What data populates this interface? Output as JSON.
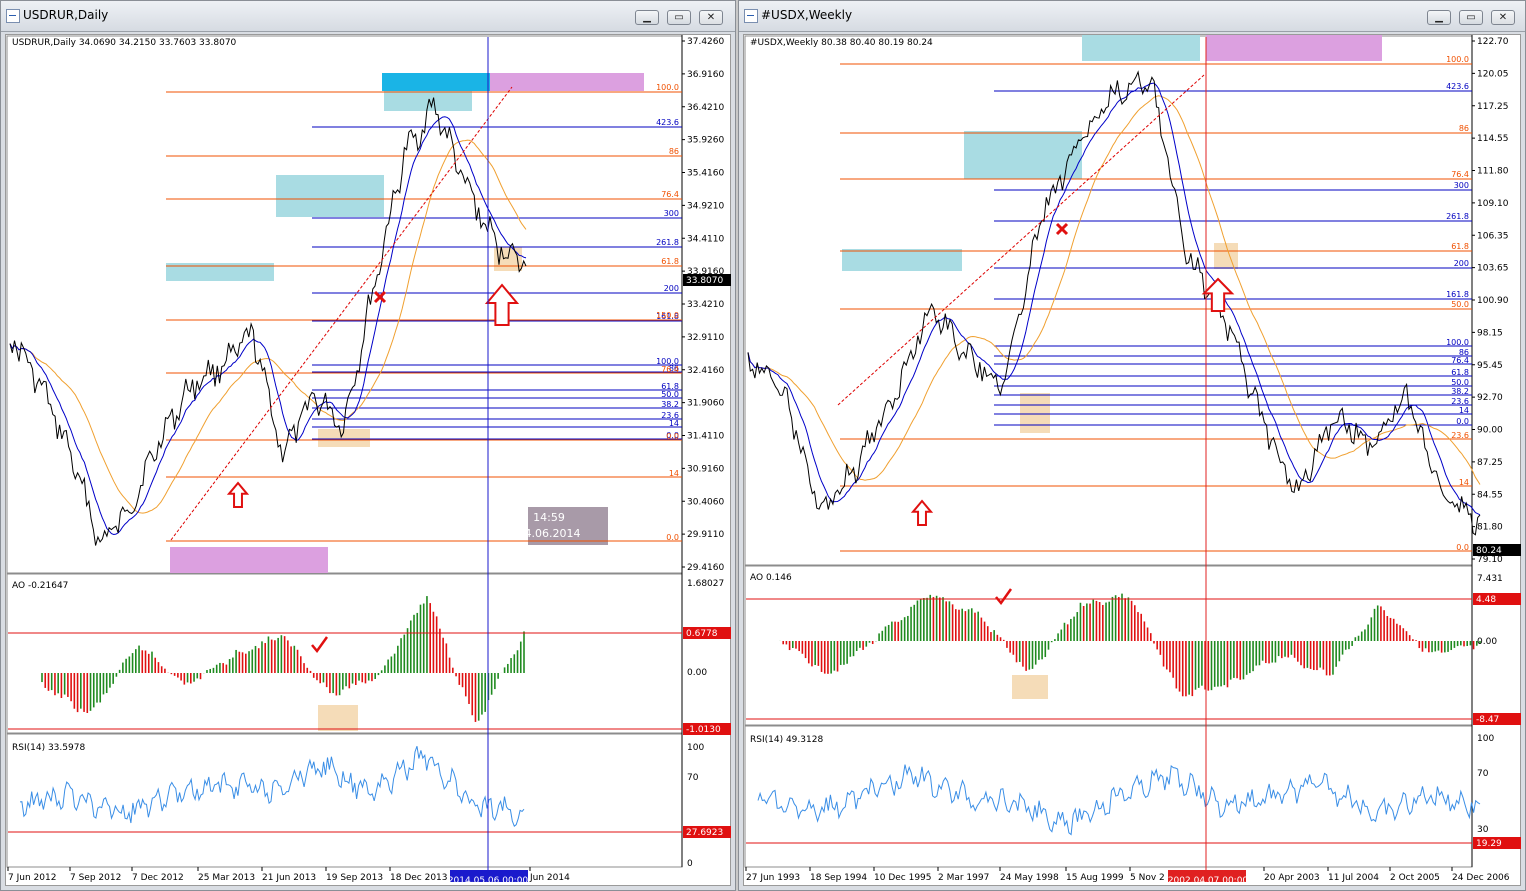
{
  "left_window": {
    "title": "USDRUR,Daily",
    "buttons": {
      "minimize": "▁",
      "maximize": "▭",
      "close": "✕"
    },
    "header": "USDRUR,Daily  34.0690 34.2150 33.7603 33.8070",
    "price_axis": [
      "37.4260",
      "36.9160",
      "36.4210",
      "35.9260",
      "35.4160",
      "34.9210",
      "34.4110",
      "33.9160",
      "33.4210",
      "32.9110",
      "32.4160",
      "31.9060",
      "31.4110",
      "30.9160",
      "30.4060",
      "29.9110",
      "29.4160"
    ],
    "current_price": "33.8070",
    "fib_upper": [
      "100.0",
      "423.6",
      "86",
      "76.4",
      "300",
      "261.8",
      "61.8",
      "200",
      "161.8",
      "150.0"
    ],
    "fib_lower": [
      "100.0",
      "86",
      "76.4",
      "61.8",
      "50.0",
      "38.2",
      "23.6",
      "14",
      "0.0",
      "0.0",
      "14",
      "0.0"
    ],
    "clock": {
      "time": "14:59",
      "date": "24.06.2014"
    },
    "ao_label": "AO -0.21647",
    "ao_axis": [
      "1.68027",
      "0.6778",
      "0.00",
      "-1.0130"
    ],
    "rsi_label": "RSI(14) 33.5978",
    "rsi_axis": [
      "100",
      "70",
      "27.6923",
      "0"
    ],
    "time_axis": [
      "7 Jun 2012",
      "7 Sep 2012",
      "7 Dec 2012",
      "25 Mar 2013",
      "21 Jun 2013",
      "19 Sep 2013",
      "18 Dec 2013",
      "Jun 2014"
    ],
    "cursor_time": "2014.05.06 00:00"
  },
  "right_window": {
    "title": "#USDX,Weekly",
    "buttons": {
      "minimize": "▁",
      "maximize": "▭",
      "close": "✕"
    },
    "header": "#USDX,Weekly  80.38 80.40 80.19 80.24",
    "price_axis": [
      "122.70",
      "120.05",
      "117.25",
      "114.55",
      "111.80",
      "109.10",
      "106.35",
      "103.65",
      "100.90",
      "98.15",
      "95.45",
      "92.70",
      "90.00",
      "87.25",
      "84.55",
      "81.80",
      "79.10"
    ],
    "current_price": "80.24",
    "fib_upper": [
      "100.0",
      "423.6",
      "86",
      "76.4",
      "300",
      "261.8",
      "61.8",
      "200",
      "161.8",
      "50.0"
    ],
    "fib_lower": [
      "100.0",
      "86",
      "76.4",
      "61.8",
      "50.0",
      "38.2",
      "23.6",
      "14",
      "0.0",
      "23.6",
      "14",
      "0.0"
    ],
    "ao_label": "AO 0.146",
    "ao_axis": [
      "7.431",
      "4.48",
      "0.00",
      "-8.47"
    ],
    "rsi_label": "RSI(14) 49.3128",
    "rsi_axis": [
      "100",
      "70",
      "30",
      "19.29"
    ],
    "time_axis": [
      "27 Jun 1993",
      "18 Sep 1994",
      "10 Dec 1995",
      "2 Mar 1997",
      "24 May 1998",
      "15 Aug 1999",
      "5 Nov 2",
      "20 Apr 2003",
      "11 Jul 2004",
      "2 Oct 2005",
      "24 Dec 2006"
    ],
    "cursor_time": "2002.04.07 00:00"
  },
  "colors": {
    "bg": "#ffffff",
    "price": "#000000",
    "ma_fast": "#0000c8",
    "ma_slow": "#f0a030",
    "fib": "#f05000",
    "fib_blue": "#0000c0",
    "ao_up": "#1f8a1f",
    "ao_down": "#e01010",
    "rsi": "#3a8ee6",
    "level": "#e01010",
    "cyan_box": "#a9dce3",
    "pink_box": "#dca0e0",
    "beige": "#f5dcb8",
    "arrow": "#e01010"
  }
}
